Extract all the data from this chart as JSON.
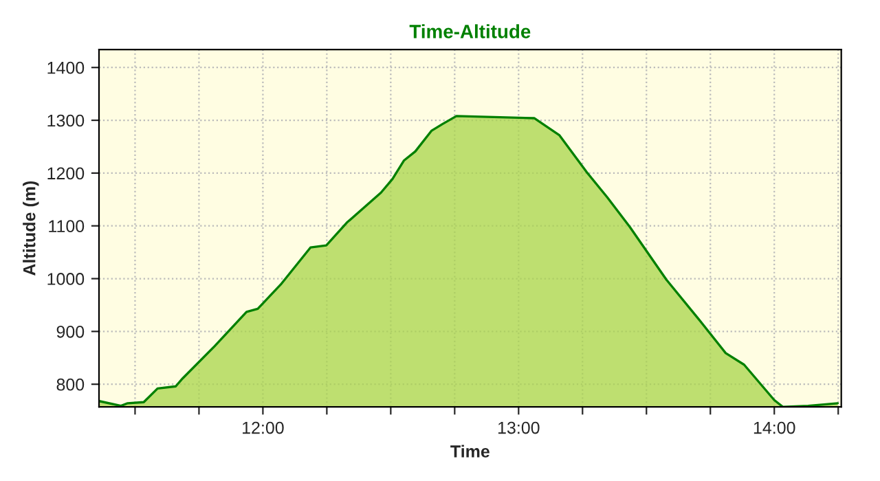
{
  "chart_data": {
    "type": "area",
    "title": "Time-Altitude",
    "xlabel": "Time",
    "ylabel": "Altitude (m)",
    "x": [
      11.36,
      11.445,
      11.471,
      11.534,
      11.588,
      11.659,
      11.686,
      11.811,
      11.936,
      11.98,
      12.07,
      12.186,
      12.248,
      12.328,
      12.462,
      12.507,
      12.552,
      12.596,
      12.659,
      12.703,
      12.757,
      13.061,
      13.159,
      13.266,
      13.347,
      13.435,
      13.578,
      13.703,
      13.81,
      13.882,
      14.0,
      14.034,
      14.132,
      14.248
    ],
    "series": [
      {
        "color": "#a8d44a",
        "values": [
          768,
          759,
          764,
          766,
          792,
          796,
          811,
          872,
          937,
          943,
          989,
          1059,
          1063,
          1106,
          1163,
          1189,
          1224,
          1241,
          1280,
          1293,
          1308,
          1304,
          1272,
          1202,
          1154,
          1098,
          998,
          924,
          859,
          837,
          770,
          757,
          759,
          764
        ]
      }
    ],
    "xlim": [
      11.359,
      14.262
    ],
    "ylim": [
      757,
      1434
    ],
    "xticks": [
      {
        "value": 11.5,
        "label": null
      },
      {
        "value": 11.75,
        "label": null
      },
      {
        "value": 12,
        "label": "12:00"
      },
      {
        "value": 12.25,
        "label": null
      },
      {
        "value": 12.5,
        "label": null
      },
      {
        "value": 12.75,
        "label": null
      },
      {
        "value": 13,
        "label": "13:00"
      },
      {
        "value": 13.25,
        "label": null
      },
      {
        "value": 13.5,
        "label": null
      },
      {
        "value": 13.75,
        "label": null
      },
      {
        "value": 14,
        "label": "14:00"
      },
      {
        "value": 14.25,
        "label": null
      }
    ],
    "yticks": [
      800,
      900,
      1000,
      1100,
      1200,
      1300,
      1400
    ],
    "grid": true,
    "legend": false
  }
}
